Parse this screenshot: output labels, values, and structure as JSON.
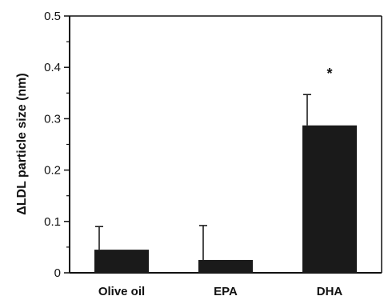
{
  "chart_data": {
    "type": "bar",
    "categories": [
      "Olive oil",
      "EPA",
      "DHA"
    ],
    "values": [
      0.045,
      0.025,
      0.287
    ],
    "error_bars": [
      0.045,
      0.067,
      0.06
    ],
    "ylabel": "ΔLDL particle size (nm)",
    "xlabel": "",
    "ylim": [
      0,
      0.5
    ],
    "yticks": [
      0,
      0.1,
      0.2,
      0.3,
      0.4,
      0.5
    ],
    "ytick_labels": [
      "0",
      "0.1",
      "0.2",
      "0.3",
      "0.4",
      "0.5"
    ],
    "annotations": [
      {
        "category": "DHA",
        "text": "*"
      }
    ],
    "bar_color": "#1a1a1a",
    "grid": false,
    "legend": false
  }
}
